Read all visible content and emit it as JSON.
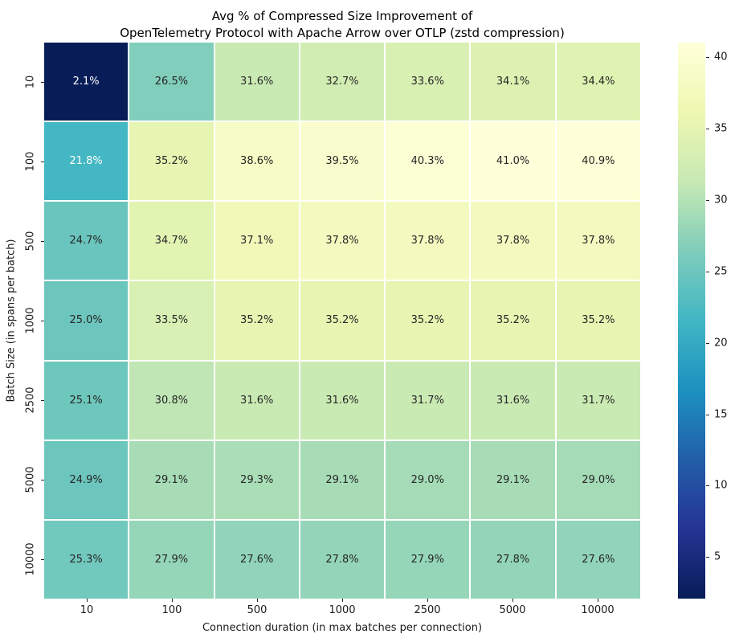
{
  "title_lines": {
    "line1": "Avg % of Compressed Size Improvement of",
    "line2": "OpenTelemetry Protocol with Apache Arrow over OTLP (zstd compression)"
  },
  "chart_data": {
    "type": "heatmap",
    "title": "Avg % of Compressed Size Improvement of\nOpenTelemetry Protocol with Apache Arrow over OTLP (zstd compression)",
    "xlabel": "Connection duration (in max batches per connection)",
    "ylabel": "Batch Size (in spans per batch)",
    "x_categories": [
      "10",
      "100",
      "500",
      "1000",
      "2500",
      "5000",
      "10000"
    ],
    "y_categories": [
      "10",
      "100",
      "500",
      "1000",
      "2500",
      "5000",
      "10000"
    ],
    "values": [
      [
        2.1,
        26.5,
        31.6,
        32.7,
        33.6,
        34.1,
        34.4
      ],
      [
        21.8,
        35.2,
        38.6,
        39.5,
        40.3,
        41.0,
        40.9
      ],
      [
        24.7,
        34.7,
        37.1,
        37.8,
        37.8,
        37.8,
        37.8
      ],
      [
        25.0,
        33.5,
        35.2,
        35.2,
        35.2,
        35.2,
        35.2
      ],
      [
        25.1,
        30.8,
        31.6,
        31.6,
        31.7,
        31.6,
        31.7
      ],
      [
        24.9,
        29.1,
        29.3,
        29.1,
        29.0,
        29.1,
        29.0
      ],
      [
        25.3,
        27.9,
        27.6,
        27.8,
        27.9,
        27.8,
        27.6
      ]
    ],
    "value_suffix": "%",
    "value_decimals": 1,
    "vmin": 2.1,
    "vmax": 41.0,
    "colormap": {
      "name": "YlGnBu_r",
      "stops": [
        "#081d58",
        "#253494",
        "#225ea8",
        "#1d91c0",
        "#41b6c4",
        "#7fcdbb",
        "#c7e9b4",
        "#edf8b1",
        "#ffffd9"
      ]
    },
    "colorbar_ticks": [
      5,
      10,
      15,
      20,
      25,
      30,
      35,
      40
    ],
    "annotation_colors": {
      "on_dark": "#ffffff",
      "on_light": "#262626"
    },
    "grid_line_color": "#ffffff",
    "legend_position": "right-colorbar",
    "grid": false
  }
}
